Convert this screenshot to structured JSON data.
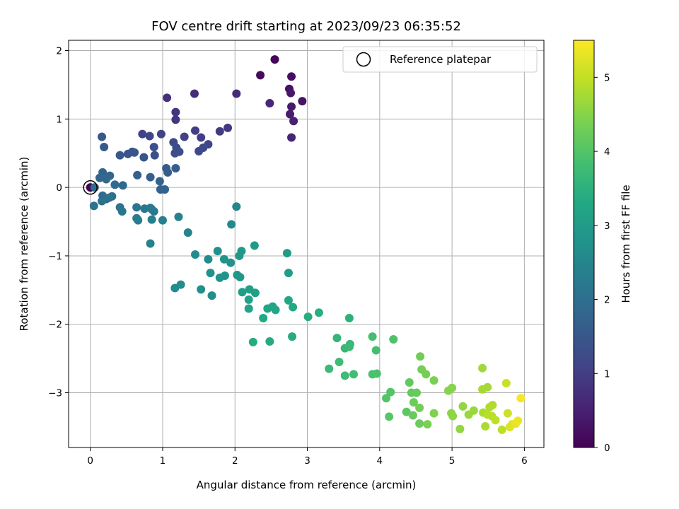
{
  "chart_data": {
    "type": "scatter",
    "title": "FOV centre drift starting at 2023/09/23 06:35:52",
    "xlabel": "Angular distance from reference (arcmin)",
    "ylabel": "Rotation from reference (arcmin)",
    "xlim": [
      -0.3,
      6.27
    ],
    "ylim": [
      -3.8,
      2.15
    ],
    "xticks": [
      0,
      1,
      2,
      3,
      4,
      5,
      6
    ],
    "yticks": [
      -3,
      -2,
      -1,
      0,
      1,
      2
    ],
    "xtick_labels": [
      "0",
      "1",
      "2",
      "3",
      "4",
      "5",
      "6"
    ],
    "ytick_labels": [
      "−3",
      "−2",
      "−1",
      "0",
      "1",
      "2"
    ],
    "grid": true,
    "legend": {
      "position": "top-right",
      "entries": [
        "Reference platepar"
      ]
    },
    "colorbar": {
      "label": "Hours from first FF file",
      "range": [
        0,
        5.5
      ],
      "ticks": [
        0,
        1,
        2,
        3,
        4,
        5
      ],
      "tick_labels": [
        "0",
        "1",
        "2",
        "3",
        "4",
        "5"
      ],
      "colormap": "viridis"
    },
    "reference_point": [
      0,
      0
    ],
    "points": [
      [
        0.0,
        0.0,
        0.05
      ],
      [
        2.55,
        1.87,
        0.1
      ],
      [
        2.35,
        1.64,
        0.15
      ],
      [
        2.78,
        1.62,
        0.2
      ],
      [
        2.75,
        1.44,
        0.25
      ],
      [
        2.93,
        1.26,
        0.3
      ],
      [
        2.77,
        1.38,
        0.35
      ],
      [
        2.78,
        1.18,
        0.4
      ],
      [
        2.76,
        1.07,
        0.45
      ],
      [
        2.81,
        0.97,
        0.5
      ],
      [
        2.78,
        0.73,
        0.55
      ],
      [
        2.48,
        1.23,
        0.6
      ],
      [
        2.02,
        1.37,
        0.65
      ],
      [
        1.44,
        1.37,
        0.7
      ],
      [
        1.06,
        1.31,
        0.75
      ],
      [
        1.18,
        1.1,
        0.8
      ],
      [
        1.18,
        0.99,
        0.85
      ],
      [
        1.9,
        0.87,
        0.9
      ],
      [
        1.79,
        0.82,
        0.95
      ],
      [
        1.45,
        0.83,
        1.0
      ],
      [
        1.53,
        0.73,
        1.0
      ],
      [
        1.3,
        0.74,
        1.05
      ],
      [
        0.98,
        0.78,
        1.1
      ],
      [
        0.72,
        0.78,
        1.1
      ],
      [
        0.82,
        0.75,
        1.15
      ],
      [
        1.63,
        0.63,
        1.15
      ],
      [
        1.56,
        0.58,
        1.2
      ],
      [
        1.5,
        0.53,
        1.2
      ],
      [
        1.15,
        0.66,
        1.25
      ],
      [
        1.19,
        0.58,
        1.25
      ],
      [
        1.23,
        0.52,
        1.3
      ],
      [
        1.17,
        0.5,
        1.3
      ],
      [
        0.88,
        0.59,
        1.35
      ],
      [
        0.89,
        0.47,
        1.35
      ],
      [
        0.74,
        0.44,
        1.4
      ],
      [
        0.58,
        0.52,
        1.4
      ],
      [
        0.61,
        0.51,
        1.45
      ],
      [
        0.52,
        0.49,
        1.45
      ],
      [
        0.41,
        0.47,
        1.5
      ],
      [
        0.16,
        0.74,
        1.5
      ],
      [
        0.19,
        0.59,
        1.55
      ],
      [
        1.05,
        0.28,
        1.55
      ],
      [
        1.18,
        0.28,
        1.6
      ],
      [
        1.07,
        0.22,
        1.6
      ],
      [
        0.65,
        0.18,
        1.65
      ],
      [
        0.83,
        0.15,
        1.65
      ],
      [
        0.96,
        0.09,
        1.7
      ],
      [
        0.97,
        -0.03,
        1.7
      ],
      [
        1.03,
        -0.03,
        1.75
      ],
      [
        0.17,
        0.22,
        1.75
      ],
      [
        0.27,
        0.17,
        1.8
      ],
      [
        0.13,
        0.14,
        1.8
      ],
      [
        0.22,
        0.12,
        1.85
      ],
      [
        0.45,
        0.03,
        1.85
      ],
      [
        0.34,
        0.04,
        1.9
      ],
      [
        0.06,
        0.0,
        1.9
      ],
      [
        0.17,
        -0.12,
        1.95
      ],
      [
        0.3,
        -0.13,
        2.0
      ],
      [
        0.22,
        -0.17,
        2.0
      ],
      [
        0.16,
        -0.2,
        2.05
      ],
      [
        0.26,
        -0.15,
        2.05
      ],
      [
        0.05,
        -0.27,
        2.1
      ],
      [
        0.41,
        -0.29,
        2.1
      ],
      [
        0.44,
        -0.35,
        2.15
      ],
      [
        0.64,
        -0.29,
        2.15
      ],
      [
        0.75,
        -0.31,
        2.2
      ],
      [
        0.85,
        -0.32,
        2.2
      ],
      [
        0.83,
        -0.3,
        2.25
      ],
      [
        0.88,
        -0.35,
        2.25
      ],
      [
        0.64,
        -0.45,
        2.3
      ],
      [
        0.66,
        -0.48,
        2.3
      ],
      [
        0.85,
        -0.47,
        2.35
      ],
      [
        1.0,
        -0.48,
        2.35
      ],
      [
        0.83,
        -0.82,
        2.4
      ],
      [
        1.22,
        -0.43,
        2.4
      ],
      [
        1.35,
        -0.66,
        2.45
      ],
      [
        2.02,
        -0.28,
        2.5
      ],
      [
        1.95,
        -0.54,
        2.55
      ],
      [
        1.45,
        -0.98,
        2.6
      ],
      [
        1.17,
        -1.47,
        2.6
      ],
      [
        1.25,
        -1.42,
        2.65
      ],
      [
        1.63,
        -1.05,
        2.65
      ],
      [
        1.53,
        -1.49,
        2.7
      ],
      [
        1.68,
        -1.58,
        2.7
      ],
      [
        1.66,
        -1.25,
        2.75
      ],
      [
        1.76,
        -0.93,
        2.75
      ],
      [
        1.85,
        -1.05,
        2.8
      ],
      [
        1.94,
        -1.1,
        2.8
      ],
      [
        1.79,
        -1.32,
        2.85
      ],
      [
        1.86,
        -1.29,
        2.85
      ],
      [
        2.03,
        -1.28,
        2.9
      ],
      [
        2.07,
        -1.31,
        2.9
      ],
      [
        2.06,
        -1.0,
        2.95
      ],
      [
        2.09,
        -0.93,
        2.95
      ],
      [
        2.27,
        -0.85,
        3.0
      ],
      [
        2.72,
        -0.96,
        3.0
      ],
      [
        2.74,
        -1.25,
        3.05
      ],
      [
        2.1,
        -1.53,
        3.05
      ],
      [
        2.2,
        -1.49,
        3.1
      ],
      [
        2.28,
        -1.54,
        3.1
      ],
      [
        2.19,
        -1.64,
        3.15
      ],
      [
        2.19,
        -1.77,
        3.15
      ],
      [
        2.45,
        -1.77,
        3.2
      ],
      [
        2.52,
        -1.74,
        3.2
      ],
      [
        2.56,
        -1.79,
        3.25
      ],
      [
        2.74,
        -1.65,
        3.25
      ],
      [
        2.8,
        -1.75,
        3.3
      ],
      [
        2.39,
        -1.91,
        3.3
      ],
      [
        2.25,
        -2.26,
        3.35
      ],
      [
        2.48,
        -2.25,
        3.35
      ],
      [
        2.79,
        -2.18,
        3.4
      ],
      [
        3.01,
        -1.89,
        3.4
      ],
      [
        3.16,
        -1.83,
        3.45
      ],
      [
        3.58,
        -1.91,
        3.5
      ],
      [
        3.41,
        -2.2,
        3.6
      ],
      [
        3.52,
        -2.35,
        3.65
      ],
      [
        3.59,
        -2.29,
        3.65
      ],
      [
        3.58,
        -2.33,
        3.7
      ],
      [
        3.3,
        -2.65,
        3.7
      ],
      [
        3.44,
        -2.55,
        3.75
      ],
      [
        3.52,
        -2.75,
        3.75
      ],
      [
        3.64,
        -2.73,
        3.8
      ],
      [
        3.9,
        -2.18,
        3.85
      ],
      [
        3.95,
        -2.38,
        3.85
      ],
      [
        3.9,
        -2.73,
        3.9
      ],
      [
        3.96,
        -2.72,
        3.9
      ],
      [
        4.19,
        -2.22,
        3.95
      ],
      [
        4.09,
        -3.08,
        4.0
      ],
      [
        4.15,
        -2.99,
        4.0
      ],
      [
        4.13,
        -3.35,
        4.05
      ],
      [
        4.37,
        -3.28,
        4.1
      ],
      [
        4.41,
        -2.85,
        4.15
      ],
      [
        4.44,
        -3.0,
        4.15
      ],
      [
        4.51,
        -3.0,
        4.2
      ],
      [
        4.46,
        -3.33,
        4.2
      ],
      [
        4.55,
        -3.45,
        4.25
      ],
      [
        4.47,
        -3.14,
        4.25
      ],
      [
        4.55,
        -3.22,
        4.3
      ],
      [
        4.56,
        -2.47,
        4.3
      ],
      [
        4.58,
        -2.66,
        4.35
      ],
      [
        4.64,
        -2.73,
        4.35
      ],
      [
        4.66,
        -3.46,
        4.4
      ],
      [
        4.75,
        -2.82,
        4.4
      ],
      [
        4.75,
        -3.3,
        4.45
      ],
      [
        4.95,
        -2.97,
        4.5
      ],
      [
        5.0,
        -2.93,
        4.5
      ],
      [
        4.99,
        -3.3,
        4.55
      ],
      [
        5.01,
        -3.34,
        4.55
      ],
      [
        5.11,
        -3.53,
        4.6
      ],
      [
        5.15,
        -3.2,
        4.6
      ],
      [
        5.23,
        -3.32,
        4.65
      ],
      [
        5.3,
        -3.26,
        4.65
      ],
      [
        5.42,
        -2.64,
        4.7
      ],
      [
        5.42,
        -2.95,
        4.75
      ],
      [
        5.49,
        -2.92,
        4.75
      ],
      [
        5.43,
        -3.29,
        4.8
      ],
      [
        5.46,
        -3.49,
        4.8
      ],
      [
        5.52,
        -3.21,
        4.85
      ],
      [
        5.56,
        -3.18,
        4.85
      ],
      [
        5.49,
        -3.32,
        4.9
      ],
      [
        5.55,
        -3.34,
        4.9
      ],
      [
        5.6,
        -3.4,
        4.95
      ],
      [
        5.69,
        -3.54,
        4.95
      ],
      [
        5.75,
        -2.86,
        5.05
      ],
      [
        5.77,
        -3.3,
        5.1
      ],
      [
        5.8,
        -3.5,
        5.2
      ],
      [
        5.83,
        -3.46,
        5.25
      ],
      [
        5.88,
        -3.45,
        5.3
      ],
      [
        5.91,
        -3.41,
        5.35
      ],
      [
        5.95,
        -3.08,
        5.45
      ]
    ]
  }
}
